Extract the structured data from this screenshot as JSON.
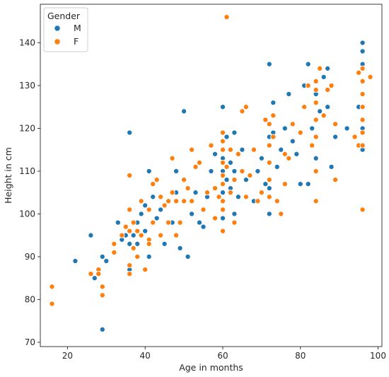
{
  "chart_data": {
    "type": "scatter",
    "title": "",
    "xlabel": "Age in months",
    "ylabel": "Height in cm",
    "xlim": [
      13,
      101
    ],
    "ylim": [
      69,
      149
    ],
    "xticks": [
      20,
      40,
      60,
      80,
      100
    ],
    "yticks": [
      70,
      80,
      90,
      100,
      110,
      120,
      130,
      140
    ],
    "grid": false,
    "legend": {
      "title": "Gender",
      "placement": "top-left"
    },
    "series": [
      {
        "name": "M",
        "color": "#1f77b4",
        "points": [
          [
            22,
            89
          ],
          [
            26,
            95
          ],
          [
            27,
            85
          ],
          [
            29,
            90
          ],
          [
            29,
            73
          ],
          [
            30,
            89
          ],
          [
            33,
            98
          ],
          [
            34,
            94
          ],
          [
            35,
            95
          ],
          [
            36,
            119
          ],
          [
            36,
            93
          ],
          [
            36,
            87
          ],
          [
            37,
            95
          ],
          [
            38,
            98
          ],
          [
            38,
            93
          ],
          [
            39,
            100
          ],
          [
            40,
            96
          ],
          [
            40,
            102
          ],
          [
            41,
            110
          ],
          [
            41,
            90
          ],
          [
            42,
            104
          ],
          [
            43,
            99
          ],
          [
            44,
            101
          ],
          [
            45,
            93
          ],
          [
            46,
            103
          ],
          [
            47,
            98
          ],
          [
            48,
            110
          ],
          [
            48,
            105
          ],
          [
            49,
            92
          ],
          [
            50,
            124
          ],
          [
            51,
            90
          ],
          [
            52,
            100
          ],
          [
            53,
            105
          ],
          [
            54,
            98
          ],
          [
            55,
            97
          ],
          [
            56,
            104
          ],
          [
            57,
            110
          ],
          [
            58,
            114
          ],
          [
            60,
            125
          ],
          [
            60,
            113
          ],
          [
            60,
            110
          ],
          [
            60,
            105
          ],
          [
            60,
            99
          ],
          [
            61,
            118
          ],
          [
            61,
            108
          ],
          [
            62,
            112
          ],
          [
            62,
            106
          ],
          [
            63,
            119
          ],
          [
            63,
            110
          ],
          [
            63,
            100
          ],
          [
            64,
            104
          ],
          [
            65,
            115
          ],
          [
            66,
            108
          ],
          [
            68,
            103
          ],
          [
            69,
            110
          ],
          [
            70,
            113
          ],
          [
            71,
            107
          ],
          [
            72,
            135
          ],
          [
            72,
            118
          ],
          [
            72,
            112
          ],
          [
            72,
            106
          ],
          [
            72,
            100
          ],
          [
            73,
            126
          ],
          [
            73,
            119
          ],
          [
            74,
            111
          ],
          [
            75,
            115
          ],
          [
            76,
            120
          ],
          [
            77,
            128
          ],
          [
            78,
            117
          ],
          [
            79,
            114
          ],
          [
            80,
            107
          ],
          [
            81,
            130
          ],
          [
            82,
            135
          ],
          [
            82,
            107
          ],
          [
            83,
            120
          ],
          [
            84,
            113
          ],
          [
            84,
            128
          ],
          [
            85,
            124
          ],
          [
            86,
            132
          ],
          [
            87,
            134
          ],
          [
            87,
            125
          ],
          [
            88,
            111
          ],
          [
            89,
            118
          ],
          [
            92,
            120
          ],
          [
            95,
            125
          ],
          [
            96,
            140
          ],
          [
            96,
            138
          ],
          [
            96,
            135
          ],
          [
            96,
            128
          ],
          [
            96,
            120
          ],
          [
            96,
            115
          ]
        ]
      },
      {
        "name": "F",
        "color": "#ff7f0e",
        "points": [
          [
            16,
            83
          ],
          [
            16,
            79
          ],
          [
            26,
            86
          ],
          [
            28,
            87
          ],
          [
            28,
            86
          ],
          [
            29,
            83
          ],
          [
            29,
            81
          ],
          [
            32,
            93
          ],
          [
            32,
            91
          ],
          [
            34,
            95
          ],
          [
            35,
            97
          ],
          [
            36,
            109
          ],
          [
            36,
            101
          ],
          [
            36,
            96
          ],
          [
            36,
            88
          ],
          [
            36,
            86
          ],
          [
            37,
            98
          ],
          [
            37,
            92
          ],
          [
            38,
            96
          ],
          [
            38,
            90
          ],
          [
            39,
            103
          ],
          [
            39,
            95
          ],
          [
            40,
            87
          ],
          [
            41,
            101
          ],
          [
            41,
            94
          ],
          [
            41,
            93
          ],
          [
            42,
            98
          ],
          [
            42,
            107
          ],
          [
            43,
            108
          ],
          [
            44,
            104
          ],
          [
            44,
            95
          ],
          [
            45,
            102
          ],
          [
            46,
            103
          ],
          [
            46,
            98
          ],
          [
            47,
            113
          ],
          [
            47,
            105
          ],
          [
            48,
            103
          ],
          [
            48,
            95
          ],
          [
            49,
            98
          ],
          [
            50,
            108
          ],
          [
            50,
            103
          ],
          [
            51,
            106
          ],
          [
            52,
            115
          ],
          [
            52,
            103
          ],
          [
            53,
            111
          ],
          [
            54,
            112
          ],
          [
            55,
            101
          ],
          [
            56,
            105
          ],
          [
            57,
            116
          ],
          [
            58,
            106
          ],
          [
            58,
            99
          ],
          [
            59,
            104
          ],
          [
            60,
            119
          ],
          [
            60,
            117
          ],
          [
            60,
            115
          ],
          [
            60,
            112
          ],
          [
            60,
            109
          ],
          [
            60,
            107
          ],
          [
            60,
            103
          ],
          [
            60,
            101
          ],
          [
            60,
            96
          ],
          [
            61,
            146
          ],
          [
            61,
            111
          ],
          [
            62,
            115
          ],
          [
            62,
            105
          ],
          [
            63,
            108
          ],
          [
            63,
            98
          ],
          [
            64,
            114
          ],
          [
            65,
            124
          ],
          [
            65,
            110
          ],
          [
            66,
            125
          ],
          [
            66,
            104
          ],
          [
            67,
            109
          ],
          [
            68,
            115
          ],
          [
            69,
            103
          ],
          [
            70,
            105
          ],
          [
            71,
            122
          ],
          [
            72,
            121
          ],
          [
            72,
            116
          ],
          [
            72,
            112
          ],
          [
            72,
            108
          ],
          [
            72,
            104
          ],
          [
            73,
            123
          ],
          [
            73,
            118
          ],
          [
            74,
            103
          ],
          [
            75,
            100
          ],
          [
            76,
            114
          ],
          [
            76,
            107
          ],
          [
            77,
            113
          ],
          [
            78,
            121
          ],
          [
            80,
            119
          ],
          [
            81,
            125
          ],
          [
            82,
            130
          ],
          [
            83,
            116
          ],
          [
            84,
            131
          ],
          [
            84,
            129
          ],
          [
            84,
            126
          ],
          [
            84,
            122
          ],
          [
            84,
            118
          ],
          [
            84,
            110
          ],
          [
            84,
            103
          ],
          [
            85,
            134
          ],
          [
            86,
            123
          ],
          [
            87,
            129
          ],
          [
            88,
            130
          ],
          [
            89,
            121
          ],
          [
            89,
            108
          ],
          [
            94,
            118
          ],
          [
            95,
            133
          ],
          [
            95,
            116
          ],
          [
            96,
            134
          ],
          [
            96,
            131
          ],
          [
            96,
            128
          ],
          [
            96,
            125
          ],
          [
            96,
            122
          ],
          [
            96,
            119
          ],
          [
            96,
            116
          ],
          [
            96,
            101
          ],
          [
            98,
            132
          ]
        ]
      }
    ]
  }
}
